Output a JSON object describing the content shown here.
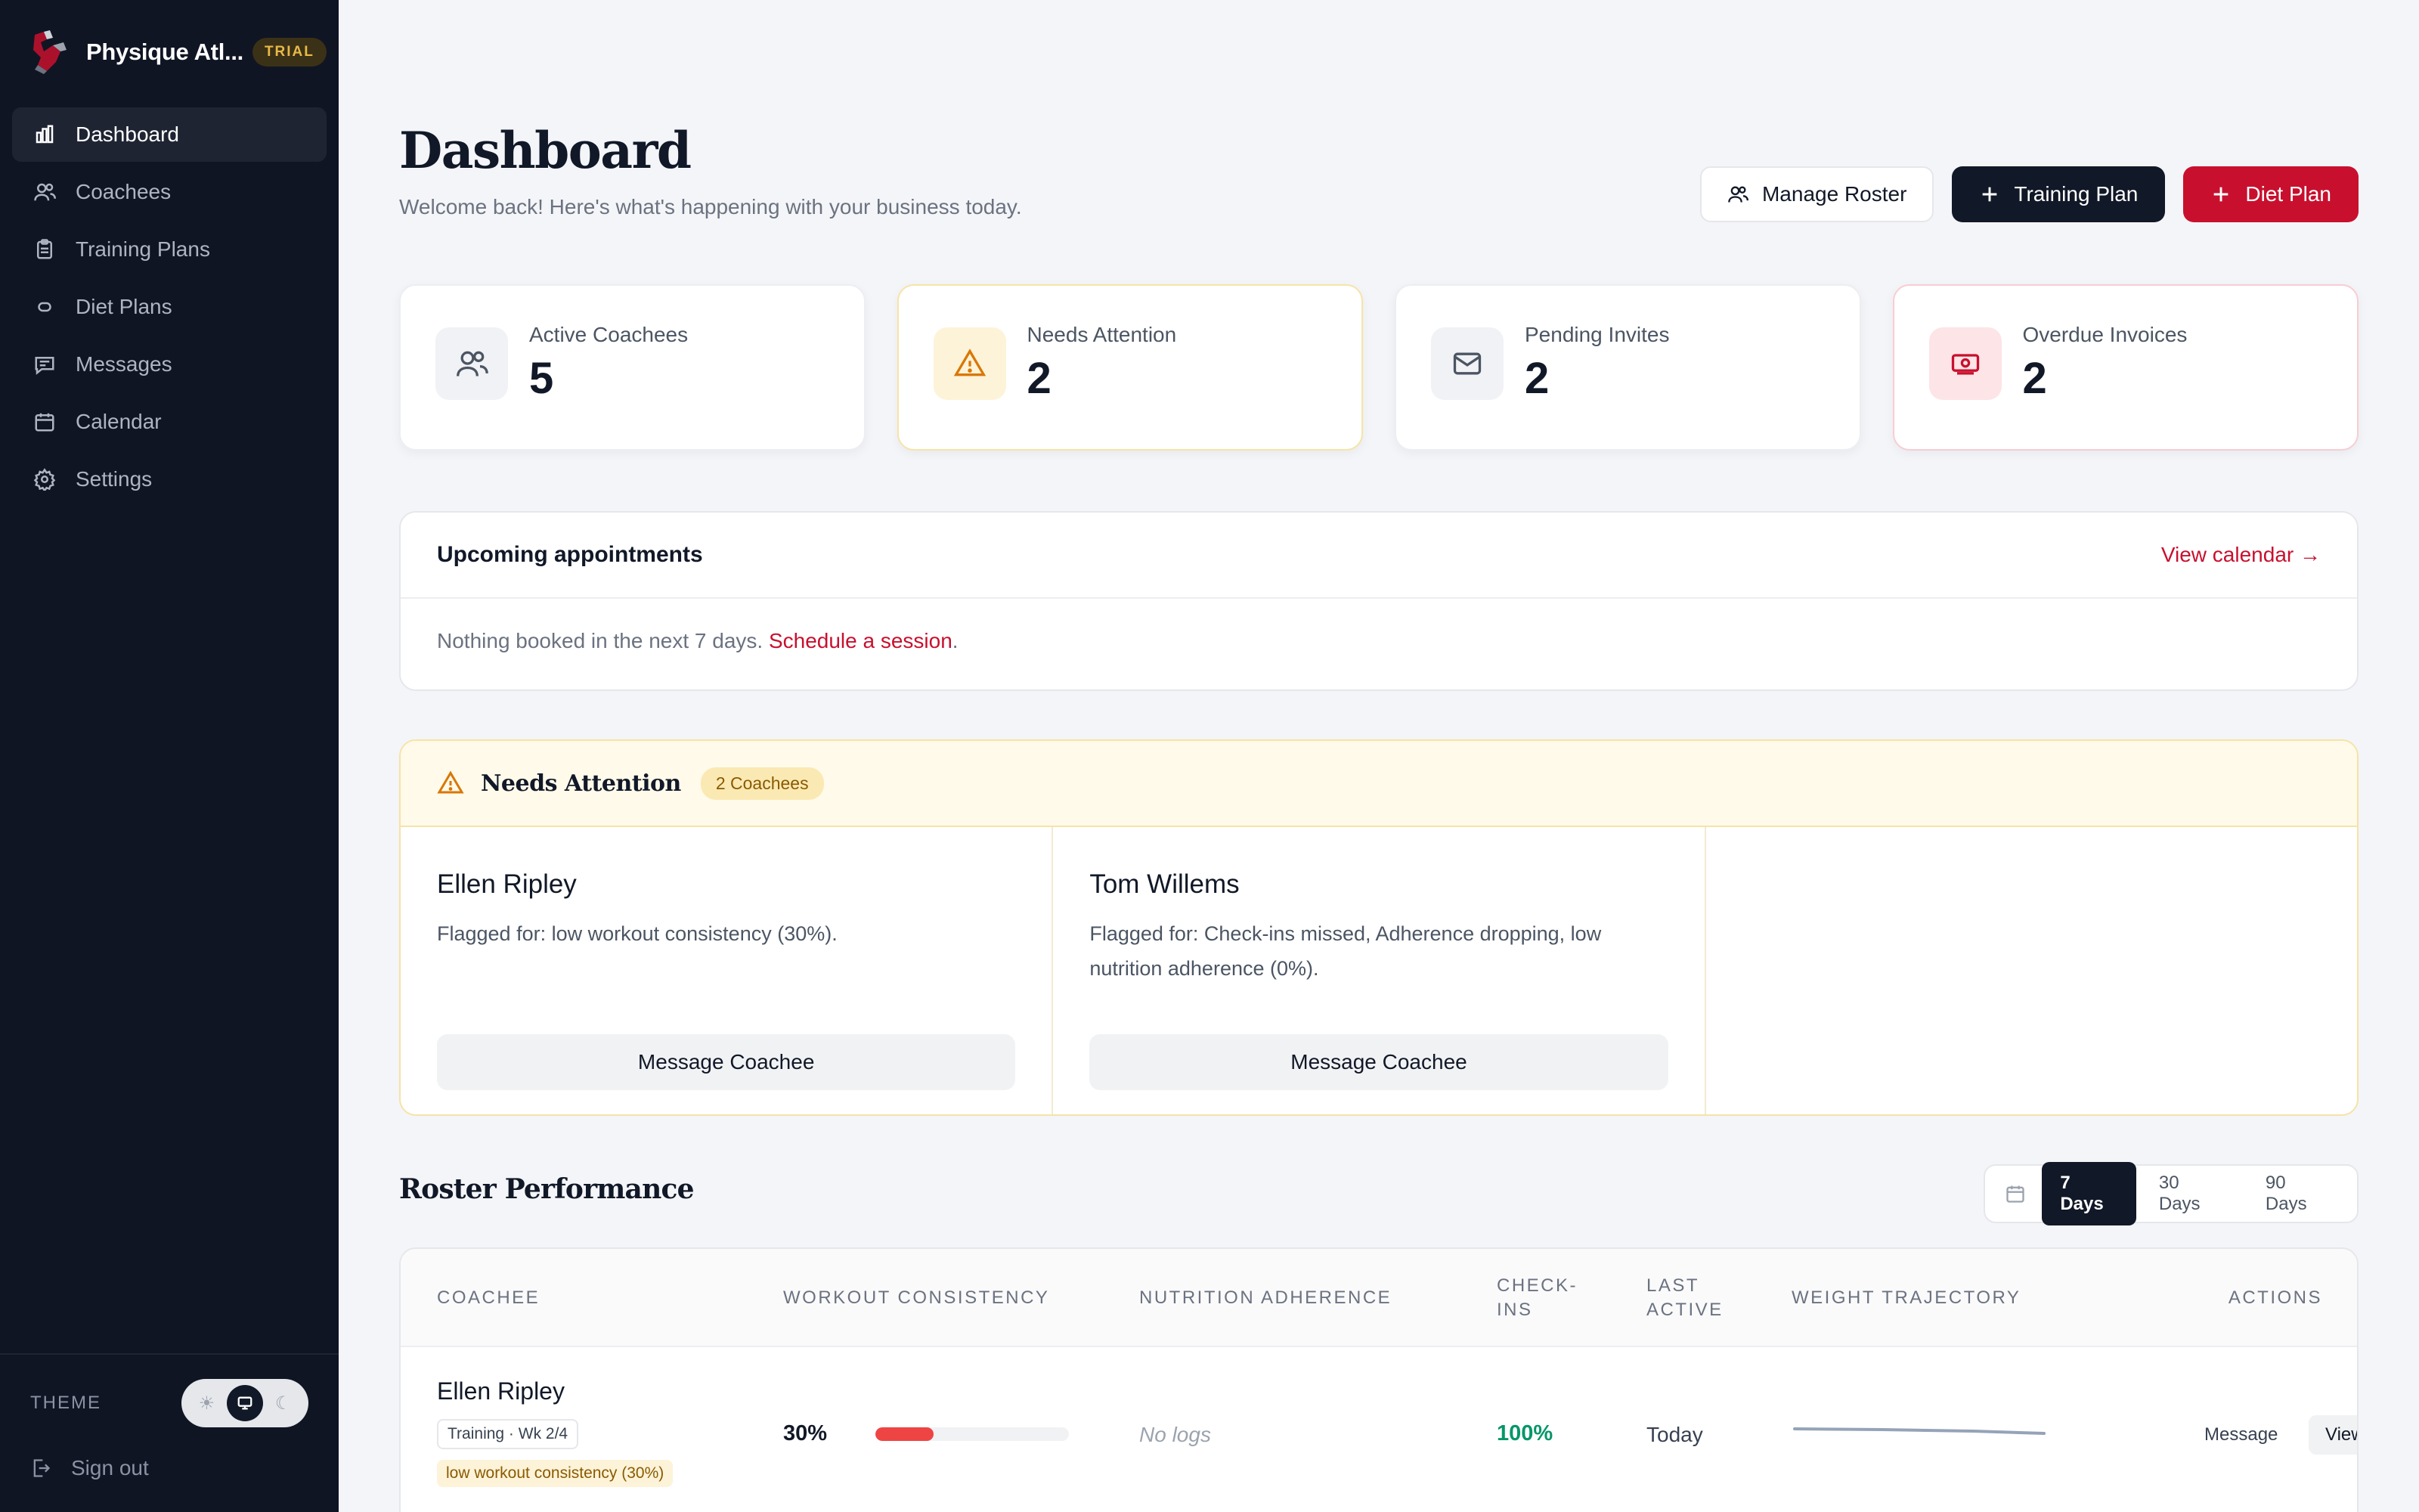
{
  "brand": {
    "name": "Physique Atl...",
    "badge": "TRIAL"
  },
  "sidebar": {
    "items": [
      {
        "label": "Dashboard",
        "icon": "bar-chart-icon",
        "active": true
      },
      {
        "label": "Coachees",
        "icon": "users-icon"
      },
      {
        "label": "Training Plans",
        "icon": "clipboard-icon"
      },
      {
        "label": "Diet Plans",
        "icon": "pill-icon"
      },
      {
        "label": "Messages",
        "icon": "message-icon"
      },
      {
        "label": "Calendar",
        "icon": "calendar-icon"
      },
      {
        "label": "Settings",
        "icon": "gear-icon"
      }
    ],
    "theme_label": "THEME",
    "theme_options": [
      "sun-icon",
      "monitor-icon",
      "moon-icon"
    ],
    "sign_out": "Sign out"
  },
  "header": {
    "title": "Dashboard",
    "subtitle": "Welcome back! Here's what's happening with your business today.",
    "buttons": {
      "manage_roster": "Manage Roster",
      "training_plan": "Training Plan",
      "diet_plan": "Diet Plan"
    }
  },
  "stats": [
    {
      "label": "Active Coachees",
      "value": "5",
      "icon": "users-icon"
    },
    {
      "label": "Needs Attention",
      "value": "2",
      "icon": "warning-icon"
    },
    {
      "label": "Pending Invites",
      "value": "2",
      "icon": "mail-icon"
    },
    {
      "label": "Overdue Invoices",
      "value": "2",
      "icon": "invoice-icon"
    }
  ],
  "appointments": {
    "title": "Upcoming appointments",
    "view_link": "View calendar →",
    "empty_text": "Nothing booked in the next 7 days.",
    "schedule_link": "Schedule a session",
    "period": "."
  },
  "attention": {
    "title": "Needs Attention",
    "badge": "2 Coachees",
    "items": [
      {
        "name": "Ellen Ripley",
        "reason": "Flagged for: low workout consistency (30%).",
        "button": "Message Coachee"
      },
      {
        "name": "Tom Willems",
        "reason": "Flagged for: Check-ins missed, Adherence dropping, low nutrition adherence (0%).",
        "button": "Message Coachee"
      }
    ]
  },
  "roster": {
    "title": "Roster Performance",
    "ranges": [
      "7 Days",
      "30 Days",
      "90 Days"
    ],
    "active_range": "7 Days",
    "columns": {
      "coachee": "COACHEE",
      "workout": "WORKOUT CONSISTENCY",
      "nutrition": "NUTRITION ADHERENCE",
      "checkins": "CHECK-INS",
      "last_active": "LAST ACTIVE",
      "weight": "WEIGHT TRAJECTORY",
      "actions": "ACTIONS"
    },
    "rows": [
      {
        "name": "Ellen Ripley",
        "tag": "Training · Wk 2/4",
        "flag": "low workout consistency (30%)",
        "workout_pct": "30%",
        "workout_value": 0.3,
        "nutrition": "No logs",
        "checkins": "100%",
        "last_active": "Today",
        "action_message": "Message",
        "action_view": "View"
      }
    ]
  },
  "colors": {
    "sidebar_bg": "#101524",
    "accent_red": "#c8102e",
    "dark_button": "#111827",
    "warning": "#d97706",
    "success": "#059669"
  }
}
